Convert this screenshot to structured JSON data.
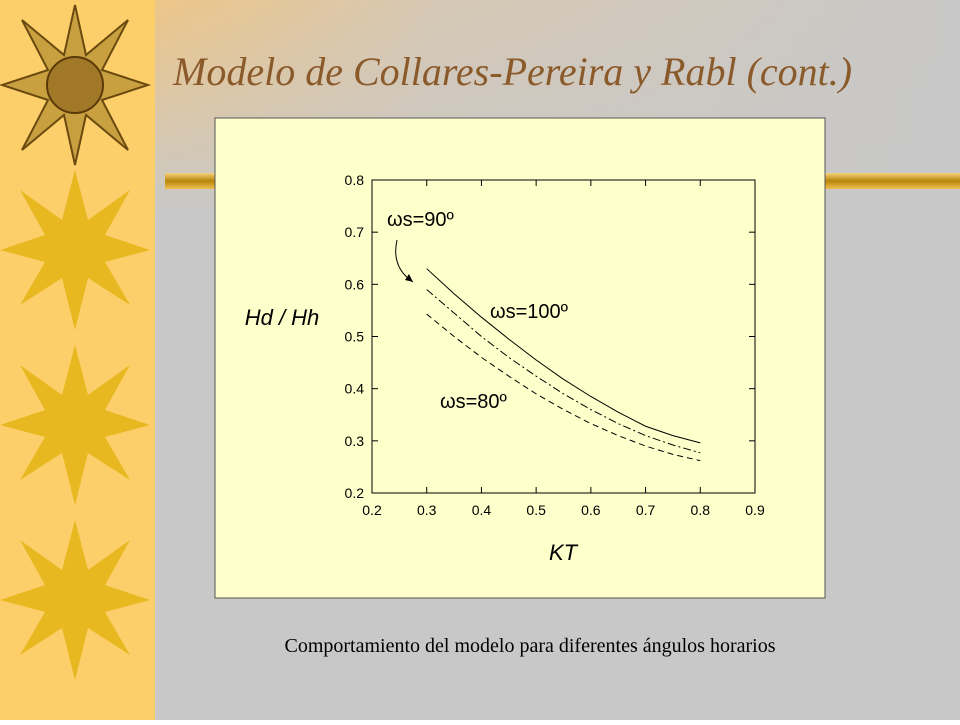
{
  "title": "Modelo de Collares-Pereira y Rabl (cont.)",
  "caption": "Comportamiento del modelo para diferentes ángulos horarios",
  "chart_data": {
    "type": "line",
    "x_label": "KT",
    "y_label": "Hd / Hh",
    "x": [
      0.3,
      0.35,
      0.4,
      0.45,
      0.5,
      0.55,
      0.6,
      0.65,
      0.7,
      0.75,
      0.8
    ],
    "series": [
      {
        "name": "ωs=100º",
        "color": "#000000",
        "dash": "solid",
        "values": [
          0.63,
          0.582,
          0.537,
          0.495,
          0.455,
          0.418,
          0.385,
          0.355,
          0.328,
          0.31,
          0.296
        ]
      },
      {
        "name": "ωs=90º",
        "color": "#000000",
        "dash": "dashdot",
        "values": [
          0.59,
          0.545,
          0.5,
          0.46,
          0.424,
          0.39,
          0.36,
          0.333,
          0.31,
          0.292,
          0.277
        ]
      },
      {
        "name": "ωs=80º",
        "color": "#000000",
        "dash": "dashed",
        "values": [
          0.543,
          0.5,
          0.46,
          0.424,
          0.39,
          0.36,
          0.333,
          0.31,
          0.29,
          0.274,
          0.262
        ]
      }
    ],
    "xlim": [
      0.2,
      0.9
    ],
    "xticks": [
      0.2,
      0.3,
      0.4,
      0.5,
      0.6,
      0.7,
      0.8,
      0.9
    ],
    "ylim": [
      0.2,
      0.8
    ],
    "yticks": [
      0.2,
      0.3,
      0.4,
      0.5,
      0.6,
      0.7,
      0.8
    ]
  }
}
